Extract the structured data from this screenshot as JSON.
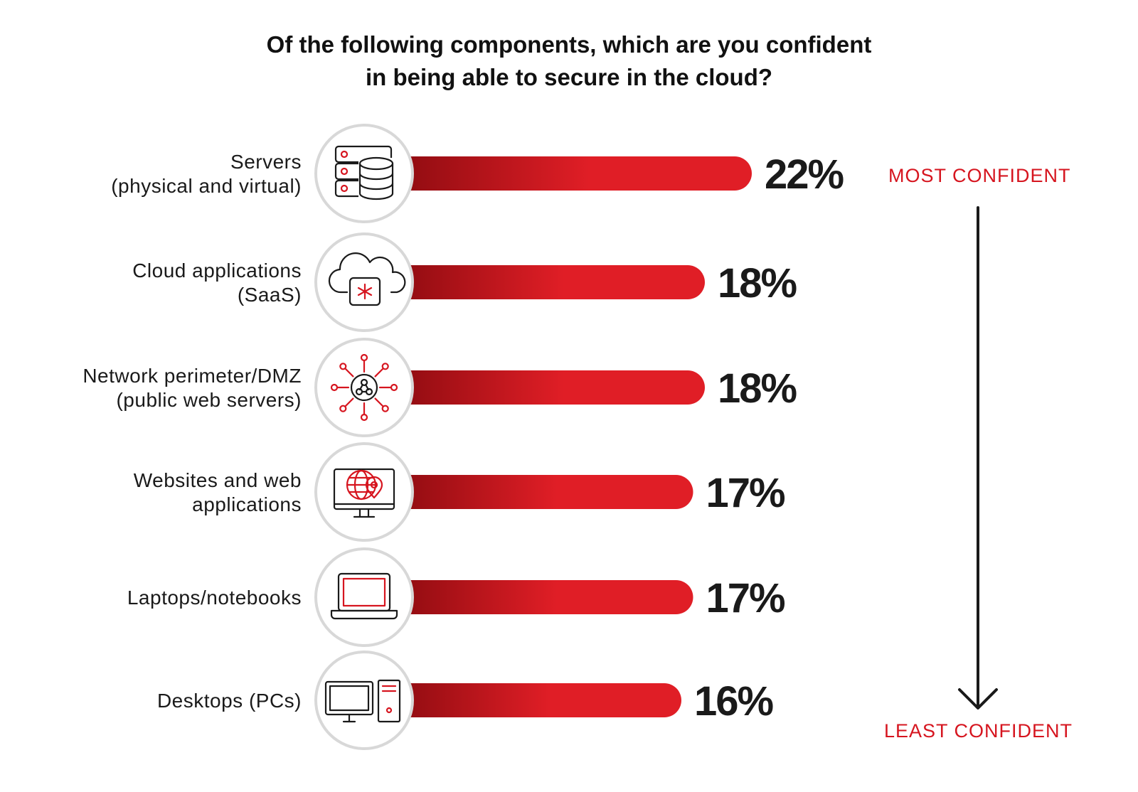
{
  "chart_data": {
    "type": "bar",
    "orientation": "horizontal",
    "title_lines": [
      "Of the following components, which are you confident",
      "in being able to secure in the cloud?"
    ],
    "categories": [
      [
        "Servers",
        "(physical and virtual)"
      ],
      [
        "Cloud applications",
        "(SaaS)"
      ],
      [
        "Network perimeter/DMZ",
        "(public web servers)"
      ],
      [
        "Websites and web",
        "applications"
      ],
      [
        "Laptops/notebooks"
      ],
      [
        "Desktops (PCs)"
      ]
    ],
    "values": [
      22,
      18,
      18,
      17,
      17,
      16
    ],
    "value_labels": [
      "22%",
      "18%",
      "18%",
      "17%",
      "17%",
      "16%"
    ],
    "icons": [
      "server-database-icon",
      "cloud-app-icon",
      "network-hub-icon",
      "globe-monitor-icon",
      "laptop-icon",
      "desktop-pc-icon"
    ],
    "bar_color_start": "#8c0b10",
    "bar_color_end": "#e01e26",
    "grid": false,
    "legend": "none"
  },
  "scale": {
    "top_label": "MOST CONFIDENT",
    "bottom_label": "LEAST CONFIDENT",
    "color": "#d6151f"
  }
}
